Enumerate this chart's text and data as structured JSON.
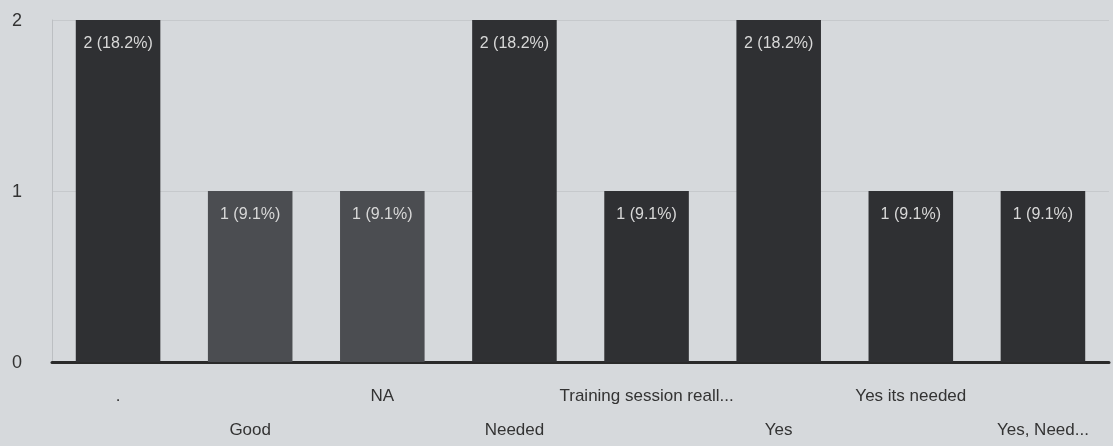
{
  "chart_data": {
    "type": "bar",
    "categories": [
      ".",
      "Good",
      "NA",
      "Needed",
      "Training session reall...",
      "Yes",
      "Yes its needed",
      "Yes, Need..."
    ],
    "values": [
      2,
      1,
      1,
      2,
      1,
      2,
      1,
      1
    ],
    "colors": [
      "#2f3033",
      "#4b4d51",
      "#4b4d51",
      "#2f3033",
      "#2f3033",
      "#2f3033",
      "#2f3033",
      "#2f3033"
    ],
    "value_labels": [
      "2 (18.2%)",
      "1 (9.1%)",
      "1 (9.1%)",
      "2 (18.2%)",
      "1 (9.1%)",
      "2 (18.2%)",
      "1 (9.1%)",
      "1 (9.1%)"
    ],
    "ylim": [
      0,
      2
    ],
    "yticks": [
      0,
      1,
      2
    ],
    "grid": "y"
  }
}
